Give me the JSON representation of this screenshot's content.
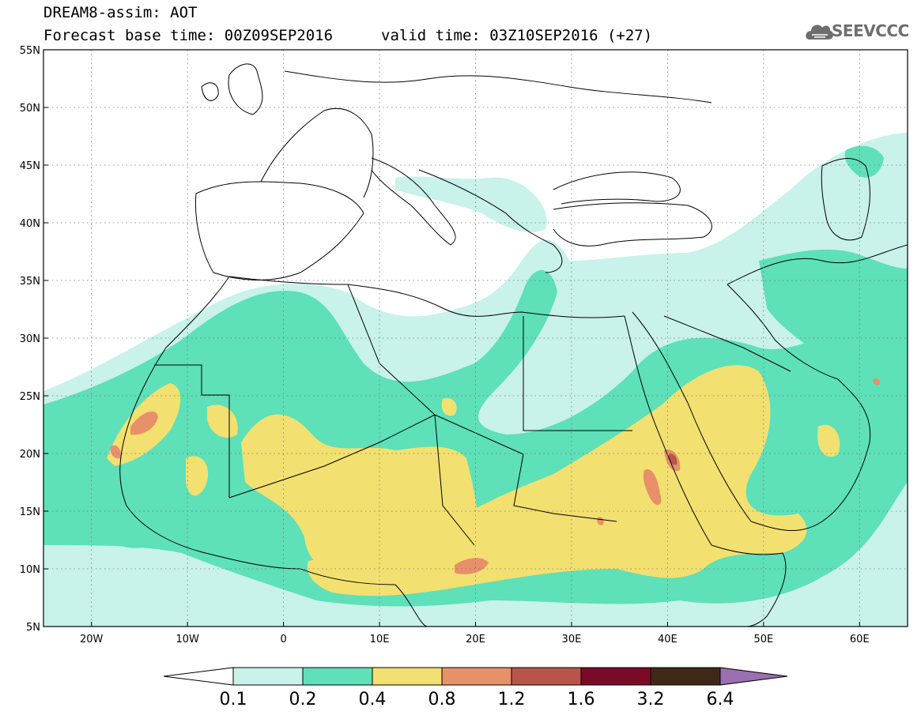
{
  "header": {
    "title": "DREAM8-assim: AOT",
    "base_time": "Forecast base time: 00Z09SEP2016",
    "valid_time": "valid time: 03Z10SEP2016 (+27)",
    "logo_text": "SEEVCCC",
    "logo_icon": "cloud-icon"
  },
  "map": {
    "lon_range": [
      -25,
      65
    ],
    "lat_range": [
      5,
      55
    ],
    "lon_ticks": [
      {
        "value": -20,
        "label": "20W"
      },
      {
        "value": -10,
        "label": "10W"
      },
      {
        "value": 0,
        "label": "0"
      },
      {
        "value": 10,
        "label": "10E"
      },
      {
        "value": 20,
        "label": "20E"
      },
      {
        "value": 30,
        "label": "30E"
      },
      {
        "value": 40,
        "label": "40E"
      },
      {
        "value": 50,
        "label": "50E"
      },
      {
        "value": 60,
        "label": "60E"
      }
    ],
    "lat_ticks": [
      {
        "value": 55,
        "label": "55N"
      },
      {
        "value": 50,
        "label": "50N"
      },
      {
        "value": 45,
        "label": "45N"
      },
      {
        "value": 40,
        "label": "40N"
      },
      {
        "value": 35,
        "label": "35N"
      },
      {
        "value": 30,
        "label": "30N"
      },
      {
        "value": 25,
        "label": "25N"
      },
      {
        "value": 20,
        "label": "20N"
      },
      {
        "value": 15,
        "label": "15N"
      },
      {
        "value": 10,
        "label": "10N"
      },
      {
        "value": 5,
        "label": "5N"
      }
    ],
    "grid": true,
    "colors": {
      "c01": "#c8f2ea",
      "c02": "#5ee0b8",
      "c04": "#f2e070",
      "c08": "#e8906a",
      "c12": "#b85548",
      "c16": "#7a0a28",
      "c32": "#3e2818",
      "c64": "#9a70b0"
    }
  },
  "colorbar": {
    "labels": [
      "0.1",
      "0.2",
      "0.4",
      "0.8",
      "1.2",
      "1.6",
      "3.2",
      "6.4"
    ]
  }
}
